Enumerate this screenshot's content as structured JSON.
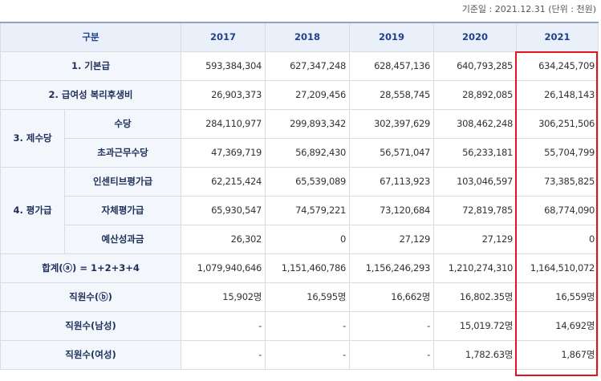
{
  "note": "기준일 : 2021.12.31 (단위 : 천원)",
  "table": {
    "header": {
      "label": "구분",
      "years": [
        "2017",
        "2018",
        "2019",
        "2020",
        "2021"
      ]
    },
    "rows": [
      {
        "label": "1. 기본급",
        "cells": [
          "593,384,304",
          "627,347,248",
          "628,457,136",
          "640,793,285",
          "634,245,709"
        ]
      },
      {
        "label": "2. 급여성 복리후생비",
        "cells": [
          "26,903,373",
          "27,209,456",
          "28,558,745",
          "28,892,085",
          "26,148,143"
        ]
      },
      {
        "group": "3. 제수당",
        "items": [
          {
            "label": "수당",
            "cells": [
              "284,110,977",
              "299,893,342",
              "302,397,629",
              "308,462,248",
              "306,251,506"
            ]
          },
          {
            "label": "초과근무수당",
            "cells": [
              "47,369,719",
              "56,892,430",
              "56,571,047",
              "56,233,181",
              "55,704,799"
            ]
          }
        ]
      },
      {
        "group": "4. 평가급",
        "items": [
          {
            "label": "인센티브평가급",
            "cells": [
              "62,215,424",
              "65,539,089",
              "67,113,923",
              "103,046,597",
              "73,385,825"
            ]
          },
          {
            "label": "자체평가급",
            "cells": [
              "65,930,547",
              "74,579,221",
              "73,120,684",
              "72,819,785",
              "68,774,090"
            ]
          },
          {
            "label": "예산성과금",
            "cells": [
              "26,302",
              "0",
              "27,129",
              "27,129",
              "0"
            ]
          }
        ]
      },
      {
        "label": "합계(ⓐ) = 1+2+3+4",
        "cells": [
          "1,079,940,646",
          "1,151,460,786",
          "1,156,246,293",
          "1,210,274,310",
          "1,164,510,072"
        ]
      },
      {
        "label": "직원수(ⓑ)",
        "cells": [
          "15,902명",
          "16,595명",
          "16,662명",
          "16,802.35명",
          "16,559명"
        ]
      },
      {
        "label": "직원수(남성)",
        "cells": [
          "-",
          "-",
          "-",
          "15,019.72명",
          "14,692명"
        ]
      },
      {
        "label": "직원수(여성)",
        "cells": [
          "-",
          "-",
          "-",
          "1,782.63명",
          "1,867명"
        ]
      }
    ]
  }
}
